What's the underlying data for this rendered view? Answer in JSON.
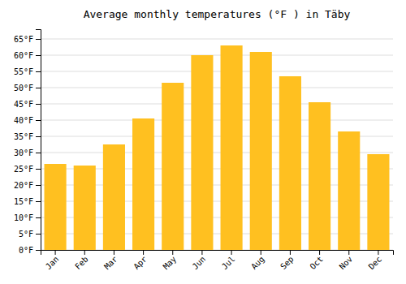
{
  "chart_data": {
    "type": "bar",
    "title": "Average monthly temperatures (°F ) in Täby",
    "categories": [
      "Jan",
      "Feb",
      "Mar",
      "Apr",
      "May",
      "Jun",
      "Jul",
      "Aug",
      "Sep",
      "Oct",
      "Nov",
      "Dec"
    ],
    "values": [
      26.5,
      26.0,
      32.5,
      40.5,
      51.5,
      60.0,
      63.0,
      61.0,
      53.5,
      45.5,
      36.5,
      29.5
    ],
    "color": "#FFC020",
    "ylim": [
      0,
      68
    ],
    "yticks": [
      {
        "value": 0,
        "label": "0°F"
      },
      {
        "value": 5,
        "label": "5°F"
      },
      {
        "value": 10,
        "label": "10°F"
      },
      {
        "value": 15,
        "label": "15°F"
      },
      {
        "value": 20,
        "label": "20°F"
      },
      {
        "value": 25,
        "label": "25°F"
      },
      {
        "value": 30,
        "label": "30°F"
      },
      {
        "value": 35,
        "label": "35°F"
      },
      {
        "value": 40,
        "label": "40°F"
      },
      {
        "value": 45,
        "label": "45°F"
      },
      {
        "value": 50,
        "label": "50°F"
      },
      {
        "value": 55,
        "label": "55°F"
      },
      {
        "value": 60,
        "label": "60°F"
      },
      {
        "value": 65,
        "label": "65°F"
      }
    ],
    "grid": true
  }
}
